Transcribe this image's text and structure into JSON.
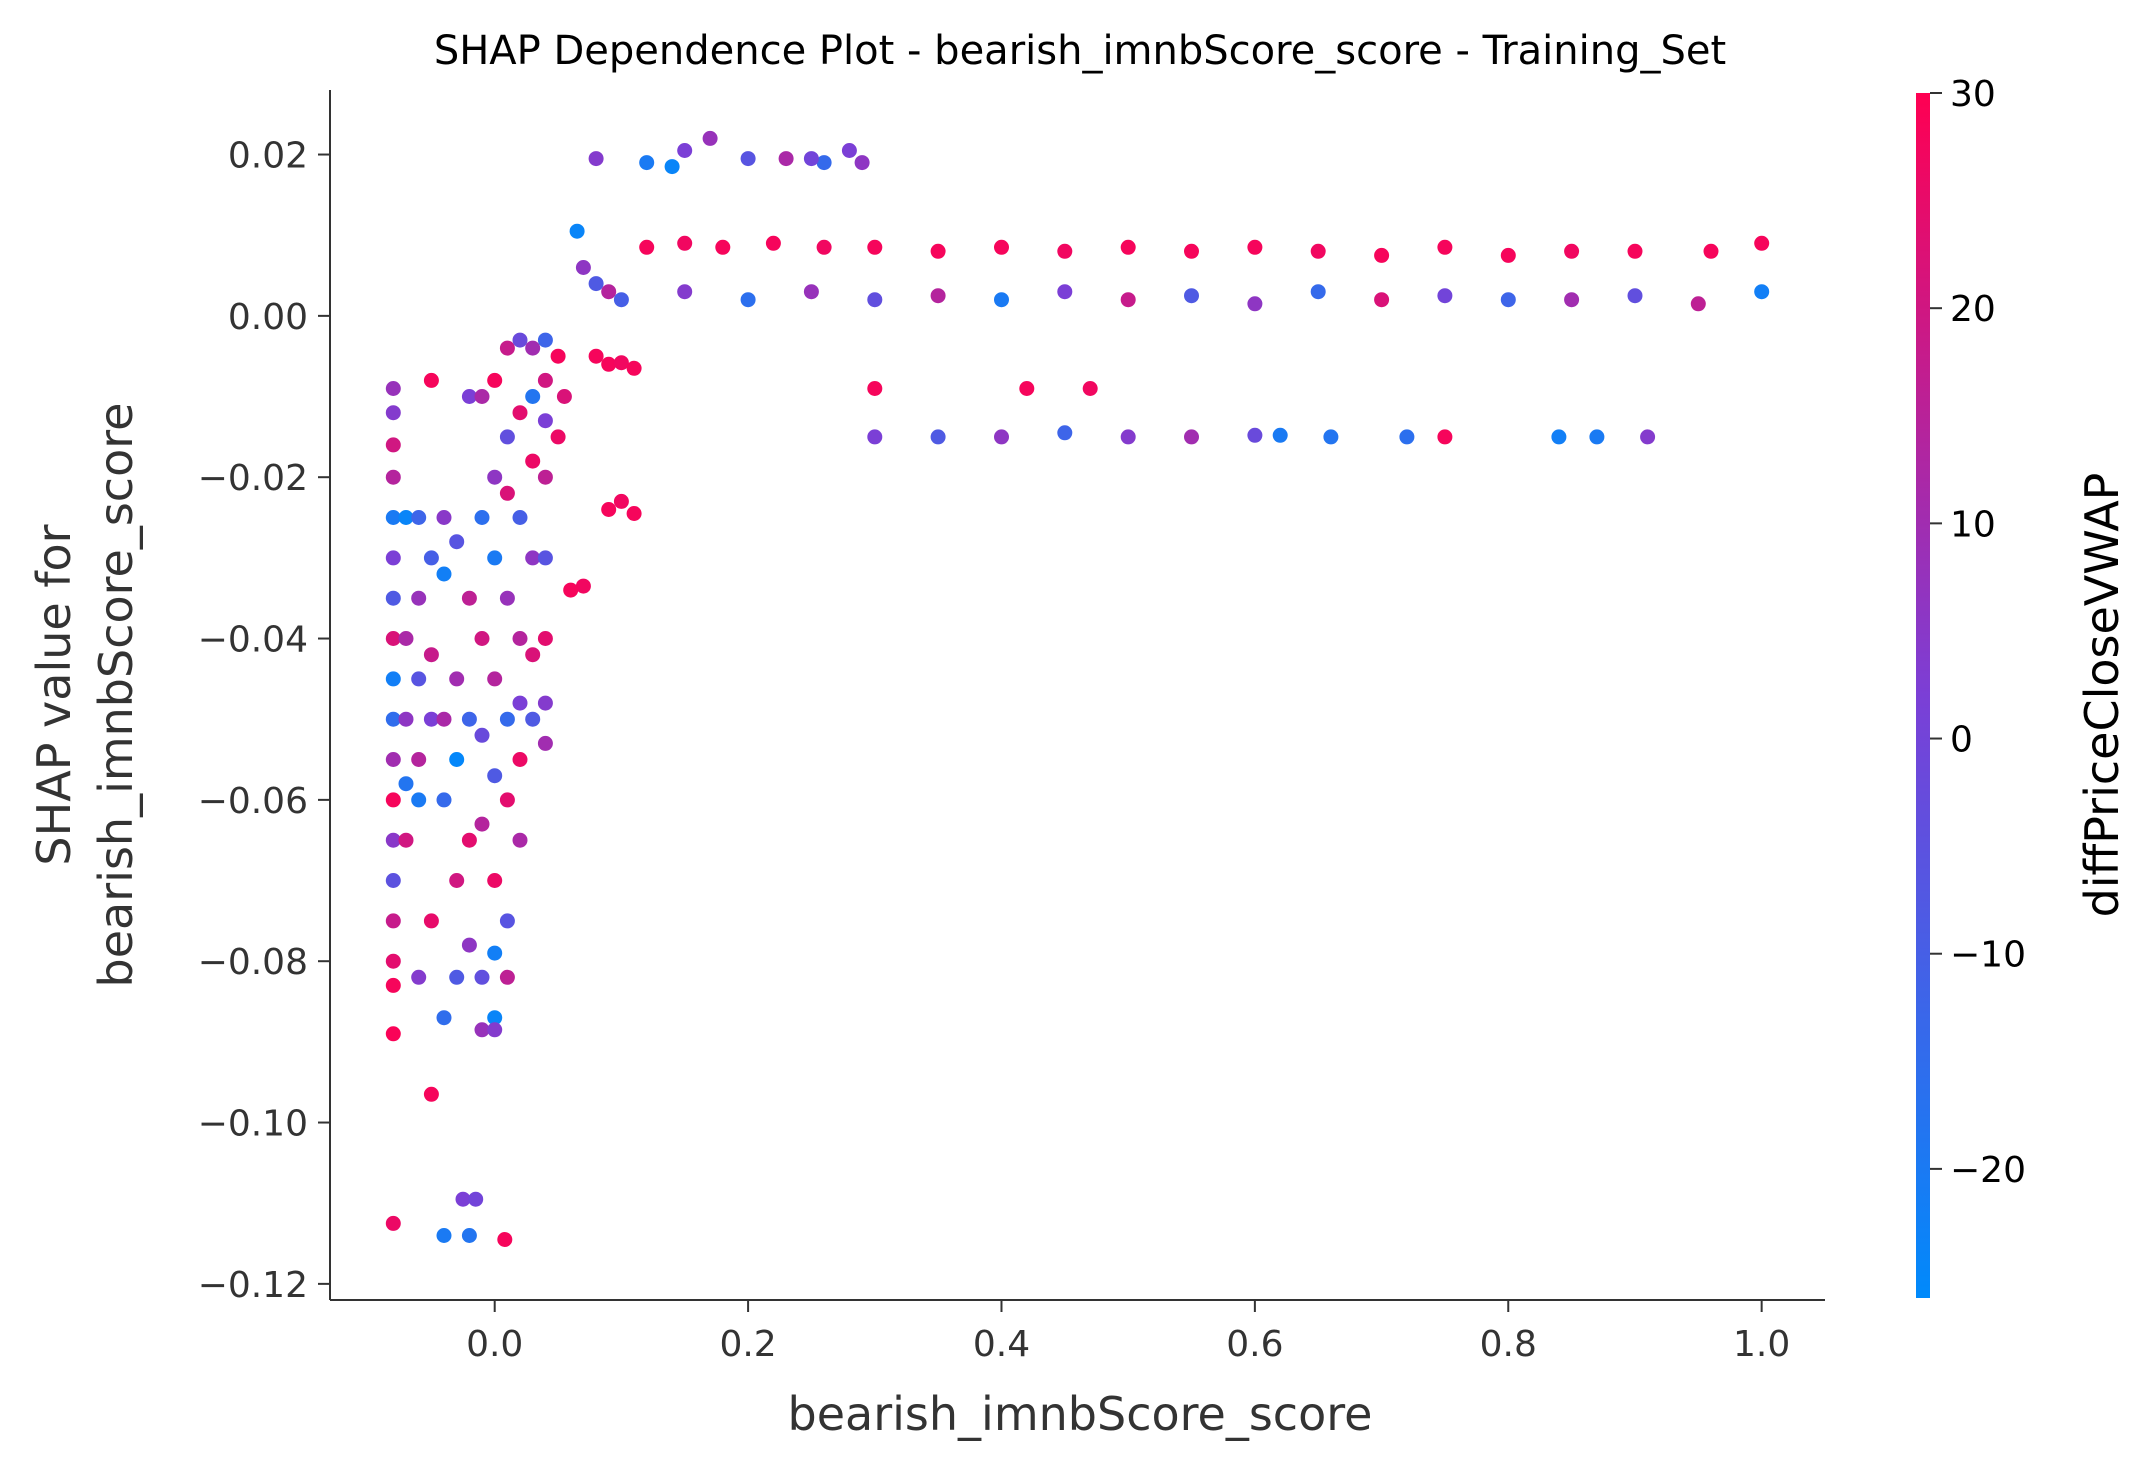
{
  "chart_data": {
    "type": "scatter",
    "title": "SHAP Dependence Plot - bearish_imnbScore_score - Training_Set",
    "xlabel": "bearish_imnbScore_score",
    "ylabel_line1": "SHAP value for",
    "ylabel_line2": "bearish_imnbScore_score",
    "xlim": [
      -0.13,
      1.05
    ],
    "ylim": [
      -0.122,
      0.028
    ],
    "xticks": [
      {
        "value": 0.0,
        "label": "0.0"
      },
      {
        "value": 0.2,
        "label": "0.2"
      },
      {
        "value": 0.4,
        "label": "0.4"
      },
      {
        "value": 0.6,
        "label": "0.6"
      },
      {
        "value": 0.8,
        "label": "0.8"
      },
      {
        "value": 1.0,
        "label": "1.0"
      }
    ],
    "yticks": [
      {
        "value": 0.02,
        "label": "0.02"
      },
      {
        "value": 0.0,
        "label": "0.00"
      },
      {
        "value": -0.02,
        "label": "−0.02"
      },
      {
        "value": -0.04,
        "label": "−0.04"
      },
      {
        "value": -0.06,
        "label": "−0.06"
      },
      {
        "value": -0.08,
        "label": "−0.08"
      },
      {
        "value": -0.1,
        "label": "−0.10"
      },
      {
        "value": -0.12,
        "label": "−0.12"
      }
    ],
    "colorbar": {
      "label": "diffPriceCloseVWAP",
      "range": [
        -26,
        30
      ],
      "ticks": [
        {
          "value": 30,
          "label": "30"
        },
        {
          "value": 20,
          "label": "20"
        },
        {
          "value": 10,
          "label": "10"
        },
        {
          "value": 0,
          "label": "0"
        },
        {
          "value": -10,
          "label": "−10"
        },
        {
          "value": -20,
          "label": "−20"
        }
      ],
      "colors": {
        "low": "#008afb",
        "mid": "#7b3fd6",
        "high": "#ff0052"
      }
    },
    "grid": false,
    "legend": "none",
    "points": [
      [
        -0.08,
        -0.009,
        8
      ],
      [
        -0.08,
        -0.012,
        4
      ],
      [
        -0.08,
        -0.016,
        20
      ],
      [
        -0.08,
        -0.02,
        14
      ],
      [
        -0.08,
        -0.025,
        -20
      ],
      [
        -0.08,
        -0.03,
        2
      ],
      [
        -0.08,
        -0.035,
        -8
      ],
      [
        -0.08,
        -0.04,
        22
      ],
      [
        -0.08,
        -0.045,
        -22
      ],
      [
        -0.08,
        -0.05,
        -15
      ],
      [
        -0.08,
        -0.055,
        10
      ],
      [
        -0.08,
        -0.06,
        28
      ],
      [
        -0.08,
        -0.065,
        5
      ],
      [
        -0.08,
        -0.07,
        -5
      ],
      [
        -0.08,
        -0.075,
        18
      ],
      [
        -0.08,
        -0.08,
        24
      ],
      [
        -0.08,
        -0.083,
        28
      ],
      [
        -0.08,
        -0.089,
        29
      ],
      [
        -0.08,
        -0.1125,
        26
      ],
      [
        -0.07,
        -0.025,
        -24
      ],
      [
        -0.07,
        -0.04,
        12
      ],
      [
        -0.07,
        -0.05,
        6
      ],
      [
        -0.07,
        -0.058,
        -18
      ],
      [
        -0.07,
        -0.065,
        20
      ],
      [
        -0.06,
        -0.025,
        -12
      ],
      [
        -0.06,
        -0.035,
        8
      ],
      [
        -0.06,
        -0.045,
        -6
      ],
      [
        -0.06,
        -0.055,
        14
      ],
      [
        -0.06,
        -0.06,
        -20
      ],
      [
        -0.06,
        -0.082,
        4
      ],
      [
        -0.05,
        -0.008,
        28
      ],
      [
        -0.05,
        -0.03,
        -10
      ],
      [
        -0.05,
        -0.042,
        18
      ],
      [
        -0.05,
        -0.05,
        2
      ],
      [
        -0.05,
        -0.075,
        25
      ],
      [
        -0.05,
        -0.0965,
        28
      ],
      [
        -0.04,
        -0.025,
        5
      ],
      [
        -0.04,
        -0.032,
        -22
      ],
      [
        -0.04,
        -0.05,
        12
      ],
      [
        -0.04,
        -0.06,
        -14
      ],
      [
        -0.04,
        -0.087,
        -15
      ],
      [
        -0.04,
        -0.114,
        -20
      ],
      [
        -0.03,
        -0.028,
        -6
      ],
      [
        -0.03,
        -0.045,
        10
      ],
      [
        -0.03,
        -0.055,
        -25
      ],
      [
        -0.03,
        -0.07,
        20
      ],
      [
        -0.03,
        -0.082,
        -8
      ],
      [
        -0.025,
        -0.1095,
        2
      ],
      [
        -0.015,
        -0.1095,
        0
      ],
      [
        -0.02,
        -0.114,
        -18
      ],
      [
        -0.02,
        -0.01,
        2
      ],
      [
        -0.02,
        -0.035,
        16
      ],
      [
        -0.02,
        -0.05,
        -12
      ],
      [
        -0.02,
        -0.065,
        24
      ],
      [
        -0.02,
        -0.078,
        6
      ],
      [
        -0.01,
        -0.01,
        12
      ],
      [
        -0.01,
        -0.025,
        -16
      ],
      [
        -0.01,
        -0.04,
        20
      ],
      [
        -0.01,
        -0.052,
        -2
      ],
      [
        -0.01,
        -0.063,
        14
      ],
      [
        -0.01,
        -0.082,
        -4
      ],
      [
        -0.01,
        -0.0885,
        8
      ],
      [
        0.0,
        -0.008,
        28
      ],
      [
        0.0,
        -0.02,
        6
      ],
      [
        0.0,
        -0.03,
        -20
      ],
      [
        0.0,
        -0.045,
        14
      ],
      [
        0.0,
        -0.057,
        -8
      ],
      [
        0.0,
        -0.07,
        26
      ],
      [
        0.0,
        -0.079,
        -22
      ],
      [
        0.0,
        -0.087,
        -24
      ],
      [
        0.0,
        -0.0885,
        4
      ],
      [
        0.008,
        -0.1145,
        28
      ],
      [
        0.01,
        -0.004,
        18
      ],
      [
        0.01,
        -0.015,
        -4
      ],
      [
        0.01,
        -0.022,
        22
      ],
      [
        0.01,
        -0.035,
        8
      ],
      [
        0.01,
        -0.05,
        -14
      ],
      [
        0.01,
        -0.06,
        24
      ],
      [
        0.01,
        -0.075,
        -6
      ],
      [
        0.01,
        -0.082,
        16
      ],
      [
        0.02,
        -0.003,
        -2
      ],
      [
        0.02,
        -0.012,
        24
      ],
      [
        0.02,
        -0.025,
        -10
      ],
      [
        0.02,
        -0.04,
        14
      ],
      [
        0.02,
        -0.048,
        2
      ],
      [
        0.02,
        -0.055,
        26
      ],
      [
        0.02,
        -0.065,
        12
      ],
      [
        0.03,
        -0.004,
        10
      ],
      [
        0.03,
        -0.01,
        -18
      ],
      [
        0.03,
        -0.018,
        26
      ],
      [
        0.03,
        -0.03,
        6
      ],
      [
        0.03,
        -0.042,
        22
      ],
      [
        0.03,
        -0.05,
        -8
      ],
      [
        0.04,
        -0.003,
        -12
      ],
      [
        0.04,
        -0.008,
        20
      ],
      [
        0.04,
        -0.013,
        2
      ],
      [
        0.04,
        -0.02,
        16
      ],
      [
        0.04,
        -0.03,
        -6
      ],
      [
        0.04,
        -0.04,
        24
      ],
      [
        0.04,
        -0.048,
        4
      ],
      [
        0.04,
        -0.053,
        10
      ],
      [
        0.05,
        -0.005,
        28
      ],
      [
        0.05,
        -0.015,
        26
      ],
      [
        0.055,
        -0.01,
        22
      ],
      [
        0.065,
        0.0105,
        -24
      ],
      [
        0.07,
        0.006,
        6
      ],
      [
        0.08,
        0.004,
        -8
      ],
      [
        0.09,
        0.003,
        14
      ],
      [
        0.08,
        -0.005,
        28
      ],
      [
        0.09,
        -0.006,
        28
      ],
      [
        0.1,
        -0.0058,
        27
      ],
      [
        0.11,
        -0.0065,
        28
      ],
      [
        0.09,
        -0.024,
        28
      ],
      [
        0.1,
        -0.023,
        27
      ],
      [
        0.11,
        -0.0245,
        28
      ],
      [
        0.07,
        -0.0335,
        27
      ],
      [
        0.06,
        -0.034,
        28
      ],
      [
        0.08,
        0.0195,
        4
      ],
      [
        0.12,
        0.019,
        -20
      ],
      [
        0.15,
        0.0205,
        2
      ],
      [
        0.17,
        0.022,
        8
      ],
      [
        0.2,
        0.0195,
        -6
      ],
      [
        0.23,
        0.0195,
        12
      ],
      [
        0.26,
        0.019,
        -14
      ],
      [
        0.28,
        0.0205,
        2
      ],
      [
        0.29,
        0.019,
        6
      ],
      [
        0.14,
        0.0185,
        -24
      ],
      [
        0.25,
        0.0195,
        0
      ],
      [
        0.12,
        0.0085,
        28
      ],
      [
        0.15,
        0.009,
        27
      ],
      [
        0.18,
        0.0085,
        28
      ],
      [
        0.22,
        0.009,
        28
      ],
      [
        0.26,
        0.0085,
        27
      ],
      [
        0.3,
        0.0085,
        28
      ],
      [
        0.35,
        0.008,
        28
      ],
      [
        0.4,
        0.0085,
        28
      ],
      [
        0.45,
        0.008,
        27
      ],
      [
        0.5,
        0.0085,
        28
      ],
      [
        0.55,
        0.008,
        28
      ],
      [
        0.6,
        0.0085,
        28
      ],
      [
        0.65,
        0.008,
        27
      ],
      [
        0.7,
        0.0075,
        28
      ],
      [
        0.75,
        0.0085,
        28
      ],
      [
        0.8,
        0.0075,
        28
      ],
      [
        0.85,
        0.008,
        27
      ],
      [
        0.9,
        0.008,
        28
      ],
      [
        0.96,
        0.008,
        28
      ],
      [
        1.0,
        0.009,
        28
      ],
      [
        0.1,
        0.002,
        -10
      ],
      [
        0.15,
        0.003,
        4
      ],
      [
        0.2,
        0.002,
        -16
      ],
      [
        0.25,
        0.003,
        8
      ],
      [
        0.3,
        0.002,
        -4
      ],
      [
        0.35,
        0.0025,
        14
      ],
      [
        0.4,
        0.002,
        -20
      ],
      [
        0.45,
        0.003,
        2
      ],
      [
        0.5,
        0.002,
        18
      ],
      [
        0.55,
        0.0025,
        -8
      ],
      [
        0.6,
        0.0015,
        6
      ],
      [
        0.65,
        0.003,
        -14
      ],
      [
        0.7,
        0.002,
        22
      ],
      [
        0.75,
        0.0025,
        0
      ],
      [
        0.8,
        0.002,
        -12
      ],
      [
        0.85,
        0.002,
        10
      ],
      [
        0.9,
        0.0025,
        -4
      ],
      [
        0.95,
        0.0015,
        16
      ],
      [
        1.0,
        0.003,
        -22
      ],
      [
        0.3,
        -0.009,
        28
      ],
      [
        0.42,
        -0.009,
        28
      ],
      [
        0.47,
        -0.009,
        27
      ],
      [
        0.3,
        -0.015,
        2
      ],
      [
        0.35,
        -0.015,
        -8
      ],
      [
        0.4,
        -0.015,
        6
      ],
      [
        0.45,
        -0.0145,
        -12
      ],
      [
        0.5,
        -0.015,
        4
      ],
      [
        0.55,
        -0.015,
        10
      ],
      [
        0.6,
        -0.0148,
        -2
      ],
      [
        0.62,
        -0.0148,
        -20
      ],
      [
        0.66,
        -0.015,
        -18
      ],
      [
        0.72,
        -0.015,
        -16
      ],
      [
        0.75,
        -0.015,
        28
      ],
      [
        0.84,
        -0.015,
        -22
      ],
      [
        0.87,
        -0.015,
        -20
      ],
      [
        0.91,
        -0.015,
        4
      ]
    ]
  }
}
